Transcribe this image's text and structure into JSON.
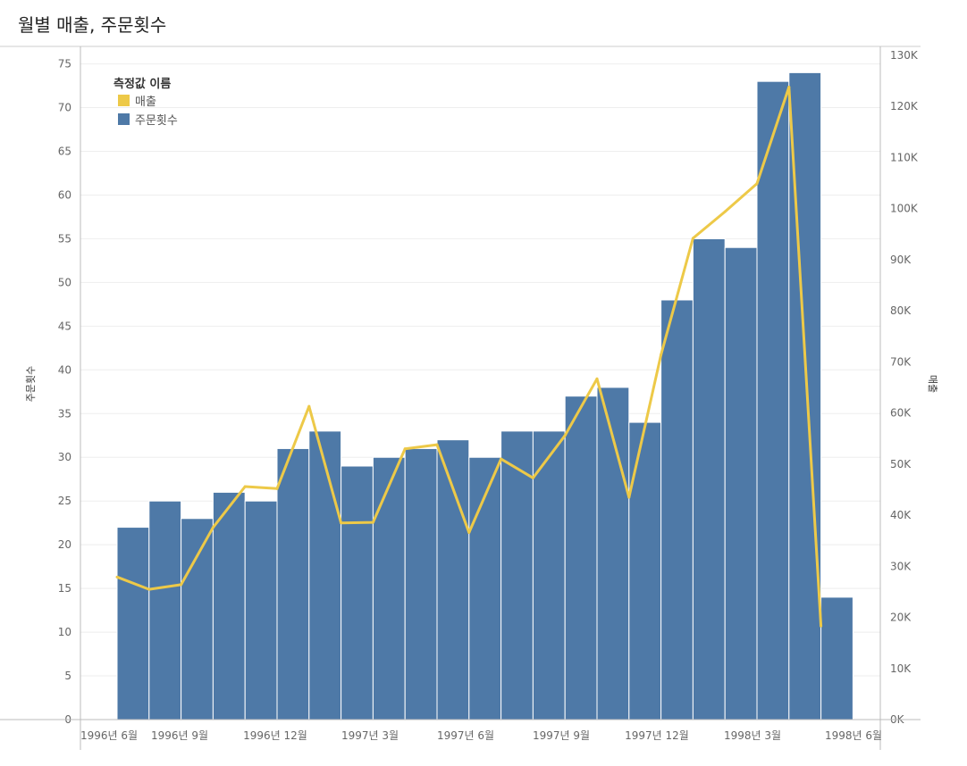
{
  "header": {
    "title": "월별 매출, 주문횟수"
  },
  "colors": {
    "bars": "#4e79a7",
    "line": "#edc948",
    "grid": "#eeeeee",
    "axis": "#bbbbbb"
  },
  "legend": {
    "title": "측정값 이름",
    "items": [
      {
        "label": "매출",
        "color": "#edc948"
      },
      {
        "label": "주문횟수",
        "color": "#4e79a7"
      }
    ]
  },
  "chart_data": {
    "type": "bar",
    "title": "월별 매출, 주문횟수",
    "categories": [
      "1996-07",
      "1996-08",
      "1996-09",
      "1996-10",
      "1996-11",
      "1996-12",
      "1997-01",
      "1997-02",
      "1997-03",
      "1997-04",
      "1997-05",
      "1997-06",
      "1997-07",
      "1997-08",
      "1997-09",
      "1997-10",
      "1997-11",
      "1997-12",
      "1998-01",
      "1998-02",
      "1998-03",
      "1998-04",
      "1998-05"
    ],
    "series": [
      {
        "name": "주문횟수",
        "type": "bar",
        "axis": "left",
        "values": [
          22,
          25,
          23,
          26,
          25,
          31,
          33,
          29,
          30,
          31,
          32,
          30,
          33,
          33,
          37,
          38,
          34,
          48,
          55,
          54,
          73,
          74,
          14
        ]
      },
      {
        "name": "매출",
        "type": "line",
        "axis": "right",
        "values": [
          27900,
          25500,
          26400,
          37600,
          45600,
          45200,
          61300,
          38500,
          38600,
          53000,
          53800,
          36600,
          51000,
          47300,
          55600,
          66700,
          43500,
          71400,
          94200,
          99400,
          104900,
          123800,
          18300
        ]
      }
    ],
    "x_ticks": [
      "1996년 6월",
      "1996년 9월",
      "1996년 12월",
      "1997년 3월",
      "1997년 6월",
      "1997년 9월",
      "1997년 12월",
      "1998년 3월",
      "1998년 6월"
    ],
    "ylabel": "주문횟수",
    "ylim": [
      0,
      77
    ],
    "yticks": [
      0,
      5,
      10,
      15,
      20,
      25,
      30,
      35,
      40,
      45,
      50,
      55,
      60,
      65,
      70,
      75
    ],
    "y2label": "매출",
    "y2lim": [
      0,
      130000
    ],
    "y2ticks": [
      "0K",
      "10K",
      "20K",
      "30K",
      "40K",
      "50K",
      "60K",
      "70K",
      "80K",
      "90K",
      "100K",
      "110K",
      "120K",
      "130K"
    ],
    "legend_position": "top-left",
    "grid": true
  }
}
